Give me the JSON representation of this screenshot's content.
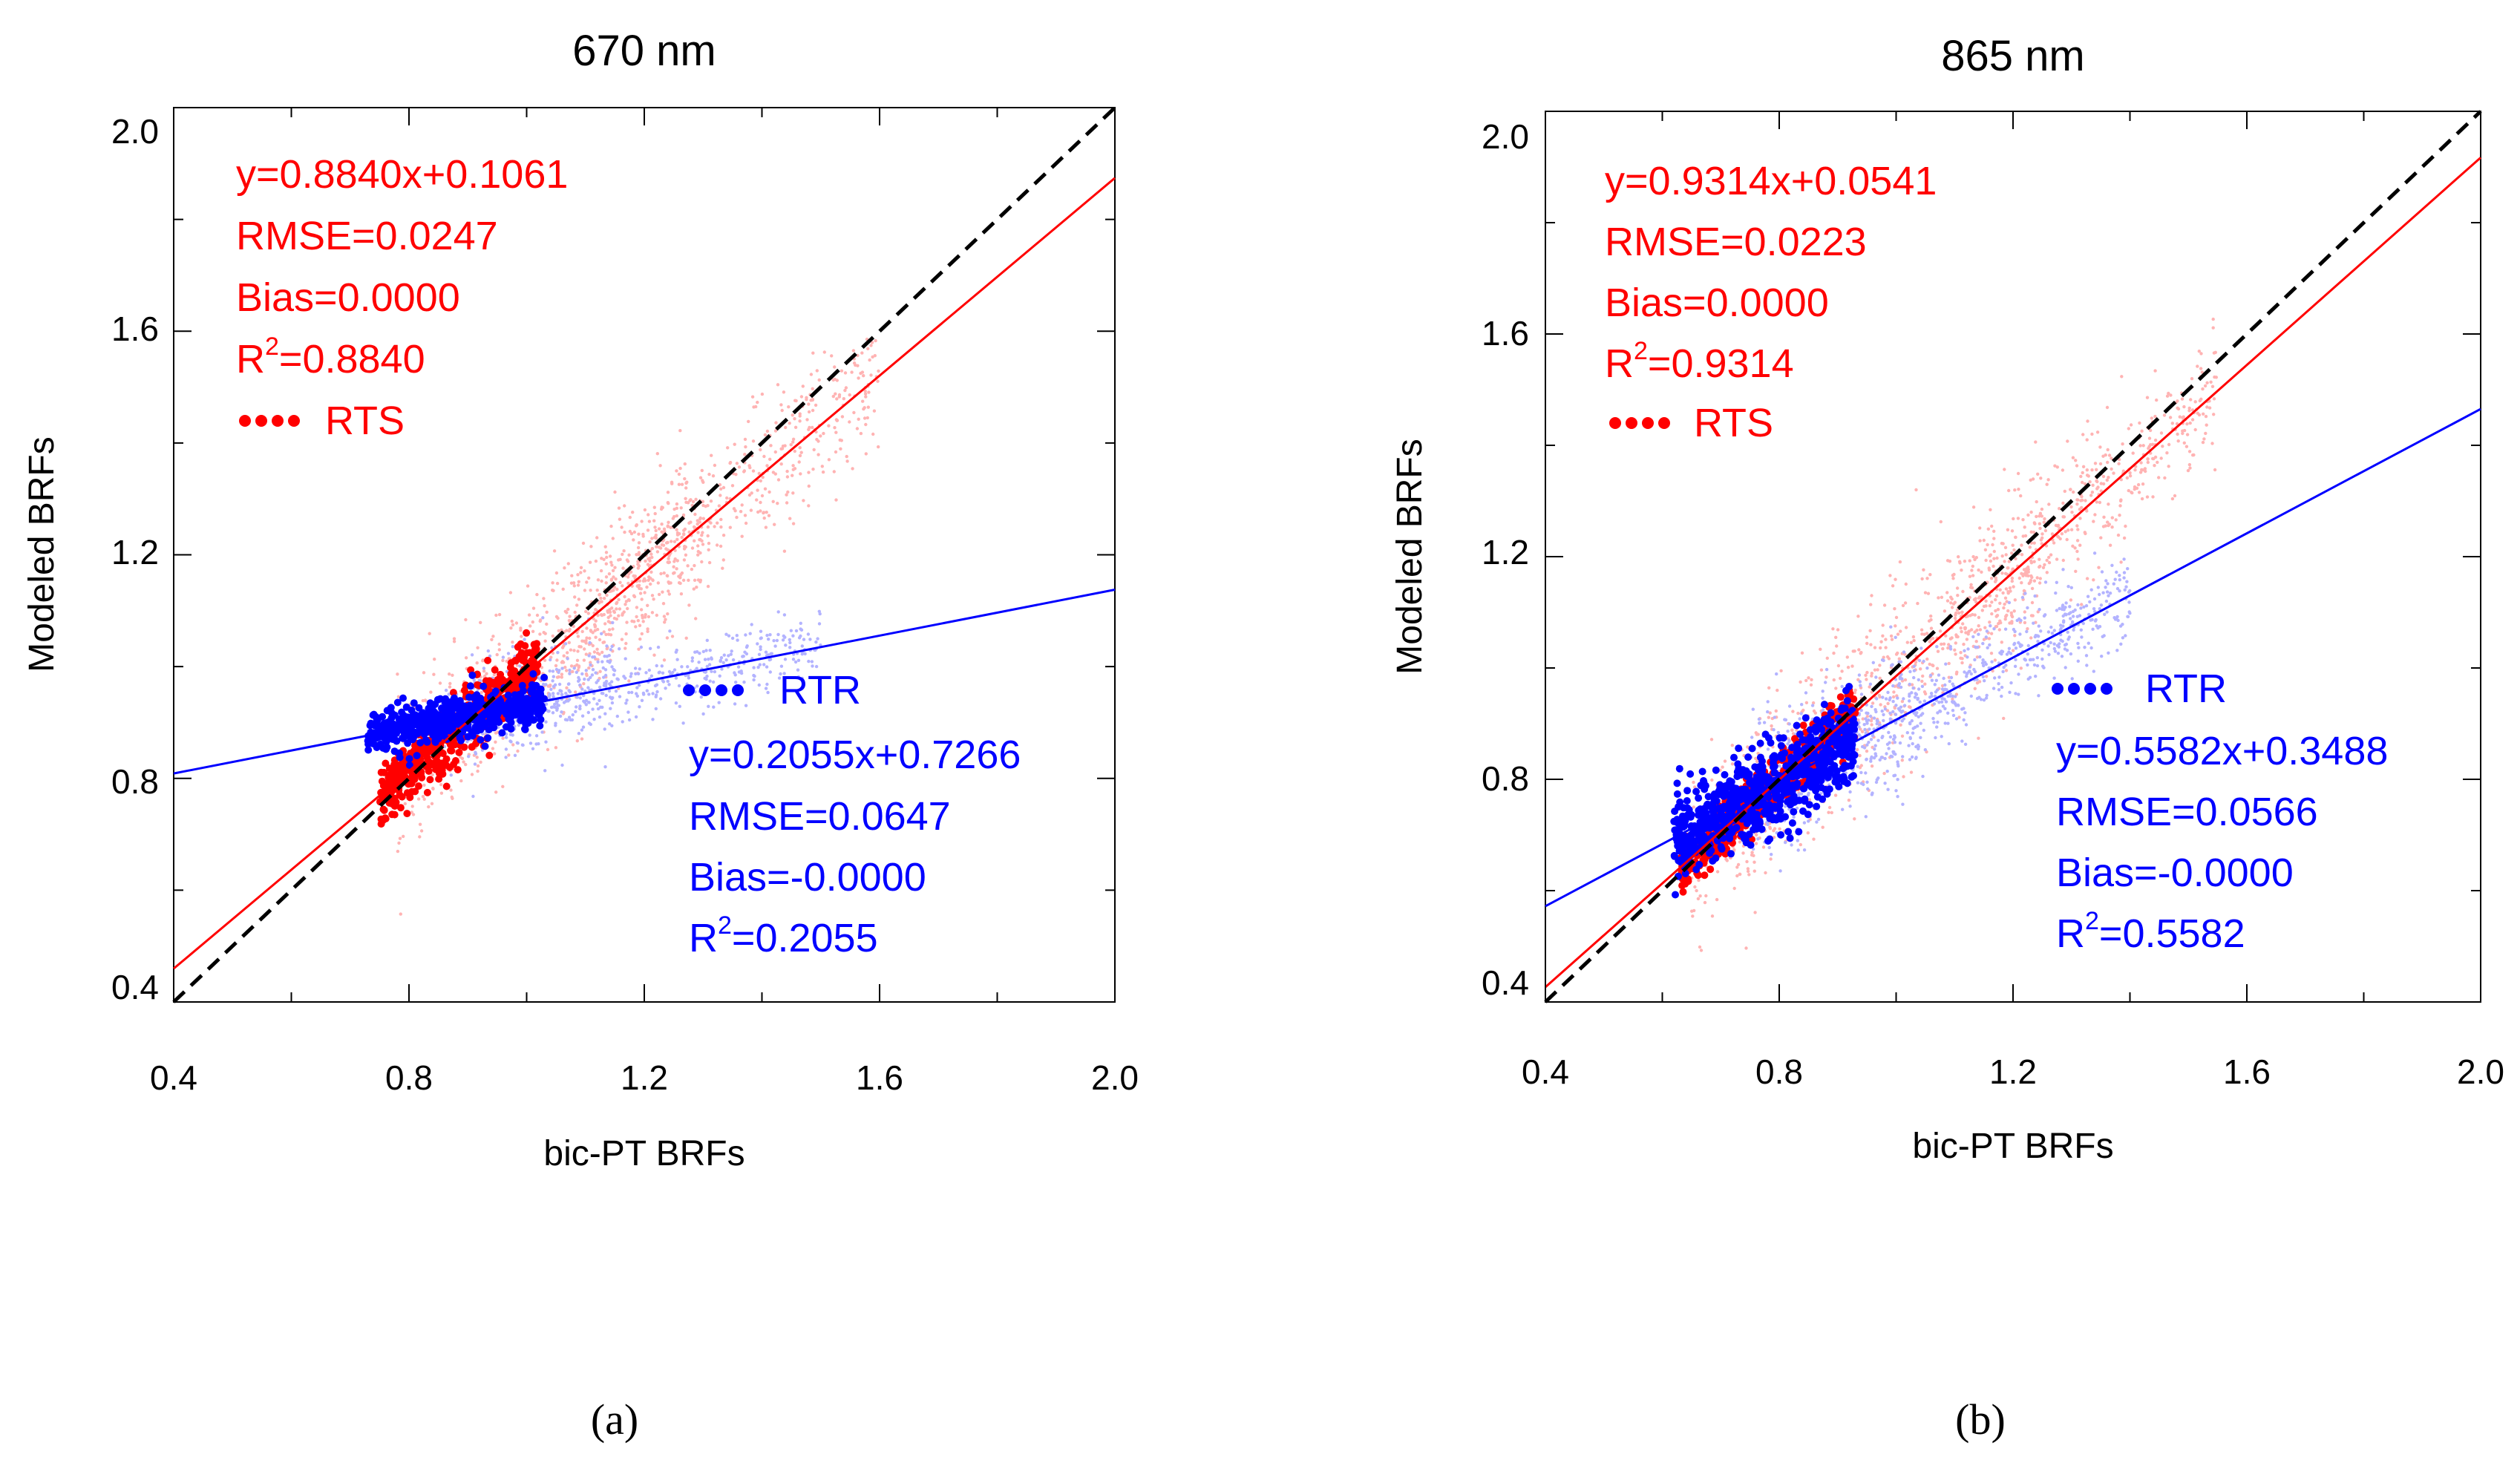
{
  "colors": {
    "rts": "#ff0000",
    "rtr": "#0000ff",
    "rts_light": "#ffb3b3",
    "rtr_light": "#b3b3ff",
    "one_to_one": "#000000",
    "axis": "#000000"
  },
  "panels": [
    {
      "caption": "(a)",
      "chart_data": {
        "type": "scatter",
        "title": "670 nm",
        "xlabel": "bic-PT BRFs",
        "ylabel": "Modeled BRFs",
        "xlim": [
          0.4,
          2.0
        ],
        "ylim": [
          0.4,
          2.0
        ],
        "xticks": [
          "0.4",
          "0.8",
          "1.2",
          "1.6",
          "2.0"
        ],
        "yticks": [
          "0.4",
          "0.8",
          "1.2",
          "1.6",
          "2.0"
        ],
        "grid": false,
        "one_to_one_line": true,
        "series": [
          {
            "name": "RTS",
            "slope": 0.884,
            "intercept": 0.1061,
            "stats": {
              "equation": "y=0.8840x+0.1061",
              "rmse": "RMSE=0.0247",
              "bias": "Bias=0.0000",
              "r2_prefix": "R",
              "r2_sup": "2",
              "r2_value": "=0.8840"
            },
            "legend_label": "RTS",
            "clouds": [
              {
                "x": [
                  0.75,
                  1.02
                ],
                "spread": 0.035,
                "n": 500,
                "dense": true
              },
              {
                "x": [
                  0.78,
                  1.3
                ],
                "spread": 0.07,
                "n": 700,
                "dense": false
              },
              {
                "x": [
                  1.05,
                  1.6
                ],
                "spread": 0.06,
                "n": 500,
                "dense": false
              }
            ]
          },
          {
            "name": "RTR",
            "slope": 0.2055,
            "intercept": 0.7266,
            "stats": {
              "equation": "y=0.2055x+0.7266",
              "rmse": "RMSE=0.0647",
              "bias": "Bias=-0.0000",
              "r2_prefix": "R",
              "r2_sup": "2",
              "r2_value": "=0.2055"
            },
            "legend_label": "RTR",
            "clouds": [
              {
                "x": [
                  0.73,
                  1.03
                ],
                "spread": 0.025,
                "n": 500,
                "dense": true
              },
              {
                "x": [
                  0.85,
                  1.5
                ],
                "spread": 0.03,
                "n": 500,
                "dense": false
              },
              {
                "x": [
                  0.9,
                  1.15
                ],
                "spread": 0.06,
                "n": 200,
                "dense": false
              }
            ]
          }
        ]
      }
    },
    {
      "caption": "(b)",
      "chart_data": {
        "type": "scatter",
        "title": "865 nm",
        "xlabel": "bic-PT BRFs",
        "ylabel": "Modeled BRFs",
        "xlim": [
          0.4,
          2.0
        ],
        "ylim": [
          0.4,
          2.0
        ],
        "xticks": [
          "0.4",
          "0.8",
          "1.2",
          "1.6",
          "2.0"
        ],
        "yticks": [
          "0.4",
          "0.8",
          "1.2",
          "1.6",
          "2.0"
        ],
        "grid": false,
        "one_to_one_line": true,
        "series": [
          {
            "name": "RTS",
            "slope": 0.9314,
            "intercept": 0.0541,
            "stats": {
              "equation": "y=0.9314x+0.0541",
              "rmse": "RMSE=0.0223",
              "bias": "Bias=0.0000",
              "r2_prefix": "R",
              "r2_sup": "2",
              "r2_value": "=0.9314"
            },
            "legend_label": "RTS",
            "clouds": [
              {
                "x": [
                  0.63,
                  0.93
                ],
                "spread": 0.03,
                "n": 500,
                "dense": true
              },
              {
                "x": [
                  0.65,
                  1.25
                ],
                "spread": 0.08,
                "n": 800,
                "dense": false
              },
              {
                "x": [
                  1.1,
                  1.55
                ],
                "spread": 0.06,
                "n": 450,
                "dense": false
              }
            ]
          },
          {
            "name": "RTR",
            "slope": 0.5582,
            "intercept": 0.3488,
            "stats": {
              "equation": "y=0.5582x+0.3488",
              "rmse": "RMSE=0.0566",
              "bias": "Bias=-0.0000",
              "r2_prefix": "R",
              "r2_sup": "2",
              "r2_value": "=0.5582"
            },
            "legend_label": "RTR",
            "clouds": [
              {
                "x": [
                  0.62,
                  0.93
                ],
                "spread": 0.05,
                "n": 700,
                "dense": true
              },
              {
                "x": [
                  0.8,
                  1.4
                ],
                "spread": 0.04,
                "n": 600,
                "dense": false
              },
              {
                "x": [
                  0.75,
                  1.05
                ],
                "spread": 0.07,
                "n": 300,
                "dense": false
              }
            ]
          }
        ]
      }
    }
  ]
}
